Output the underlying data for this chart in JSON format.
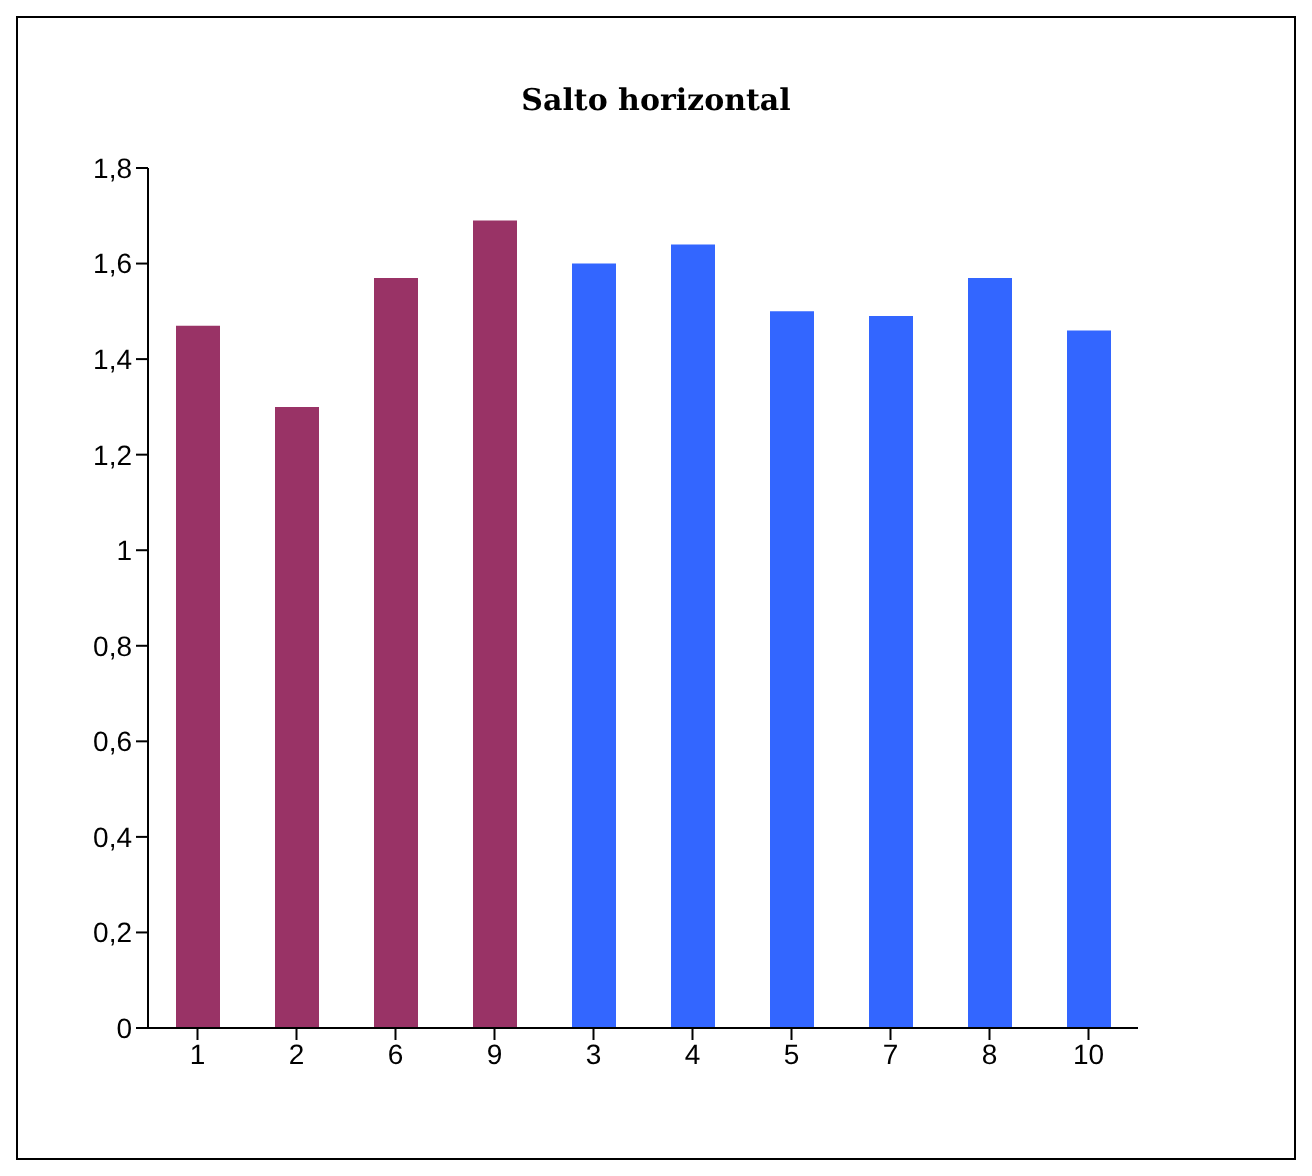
{
  "chart_data": {
    "type": "bar",
    "title": "Salto horizontal",
    "categories": [
      "1",
      "2",
      "6",
      "9",
      "3",
      "4",
      "5",
      "7",
      "8",
      "10"
    ],
    "values": [
      1.47,
      1.3,
      1.57,
      1.69,
      1.6,
      1.64,
      1.5,
      1.49,
      1.57,
      1.46
    ],
    "colors": [
      "#993366",
      "#993366",
      "#993366",
      "#993366",
      "#3366ff",
      "#3366ff",
      "#3366ff",
      "#3366ff",
      "#3366ff",
      "#3366ff"
    ],
    "ylim": [
      0,
      1.8
    ],
    "yticks": [
      0,
      {
        "value": 0.2,
        "label": "0,2"
      },
      {
        "value": 0.4,
        "label": "0,4"
      },
      {
        "value": 0.6,
        "label": "0,6"
      },
      {
        "value": 0.8,
        "label": "0,8"
      },
      1,
      {
        "value": 1.2,
        "label": "1,2"
      },
      {
        "value": 1.4,
        "label": "1,4"
      },
      {
        "value": 1.6,
        "label": "1,6"
      },
      {
        "value": 1.8,
        "label": "1,8"
      }
    ],
    "grid": false,
    "legend": false
  }
}
